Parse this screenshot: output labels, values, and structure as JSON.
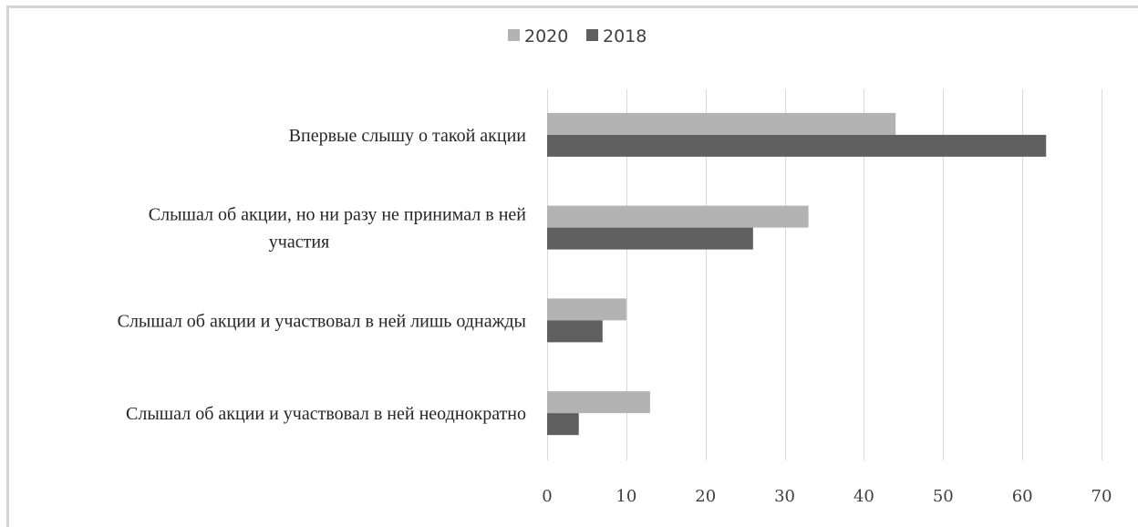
{
  "chart_data": {
    "type": "bar",
    "orientation": "horizontal",
    "title": "",
    "xlabel": "",
    "ylabel": "",
    "categories": [
      [
        "Впервые слышу о такой акции"
      ],
      [
        "Слышал об акции, но ни разу не принимал в ней",
        "участия"
      ],
      [
        "Слышал об акции и участвовал в ней лишь однажды"
      ],
      [
        "Слышал об акции и участвовал в ней неоднократно"
      ]
    ],
    "series": [
      {
        "name": "2020",
        "color": "#b3b3b3",
        "values": [
          44,
          33,
          10,
          13
        ]
      },
      {
        "name": "2018",
        "color": "#5f5f5f",
        "values": [
          63,
          26,
          7,
          4
        ]
      }
    ],
    "xlim": [
      0,
      70
    ],
    "xticks": [
      "0",
      "10",
      "20",
      "30",
      "40",
      "50",
      "60",
      "70"
    ],
    "grid": true,
    "legend_position": "top-center"
  }
}
